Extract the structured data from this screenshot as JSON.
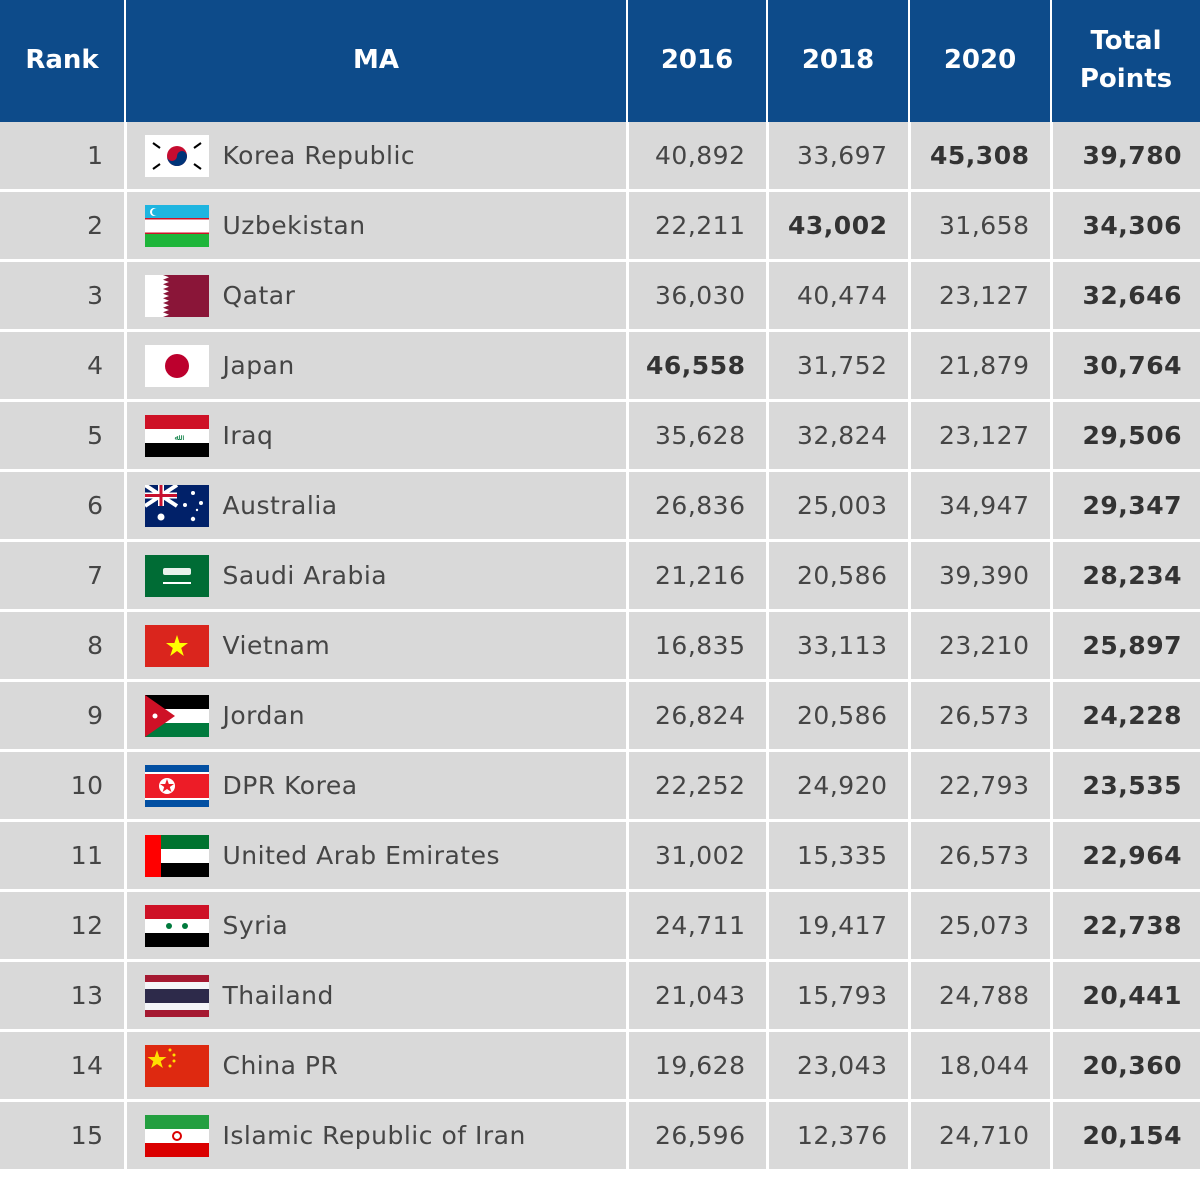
{
  "table": {
    "header": [
      "Rank",
      "MA",
      "2016",
      "2018",
      "2020",
      "Total Points"
    ],
    "rows": [
      [
        "1",
        "Korea Republic",
        "40,892",
        "33,697",
        "45,308",
        "39,780"
      ],
      [
        "2",
        "Uzbekistan",
        "22,211",
        "43,002",
        "31,658",
        "34,306"
      ],
      [
        "3",
        "Qatar",
        "36,030",
        "40,474",
        "23,127",
        "32,646"
      ],
      [
        "4",
        "Japan",
        "46,558",
        "31,752",
        "21,879",
        "30,764"
      ],
      [
        "5",
        "Iraq",
        "35,628",
        "32,824",
        "23,127",
        "29,506"
      ],
      [
        "6",
        "Australia",
        "26,836",
        "25,003",
        "34,947",
        "29,347"
      ],
      [
        "7",
        "Saudi Arabia",
        "21,216",
        "20,586",
        "39,390",
        "28,234"
      ],
      [
        "8",
        "Vietnam",
        "16,835",
        "33,113",
        "23,210",
        "25,897"
      ],
      [
        "9",
        "Jordan",
        "26,824",
        "20,586",
        "26,573",
        "24,228"
      ],
      [
        "10",
        "DPR Korea",
        "22,252",
        "24,920",
        "22,793",
        "23,535"
      ],
      [
        "11",
        "United Arab Emirates",
        "31,002",
        "15,335",
        "26,573",
        "22,964"
      ],
      [
        "12",
        "Syria",
        "24,711",
        "19,417",
        "25,073",
        "22,738"
      ],
      [
        "13",
        "Thailand",
        "21,043",
        "15,793",
        "24,788",
        "20,441"
      ],
      [
        "14",
        "China PR",
        "19,628",
        "23,043",
        "18,044",
        "20,360"
      ],
      [
        "15",
        "Islamic Republic of Iran",
        "26,596",
        "12,376",
        "24,710",
        "20,154"
      ]
    ]
  }
}
